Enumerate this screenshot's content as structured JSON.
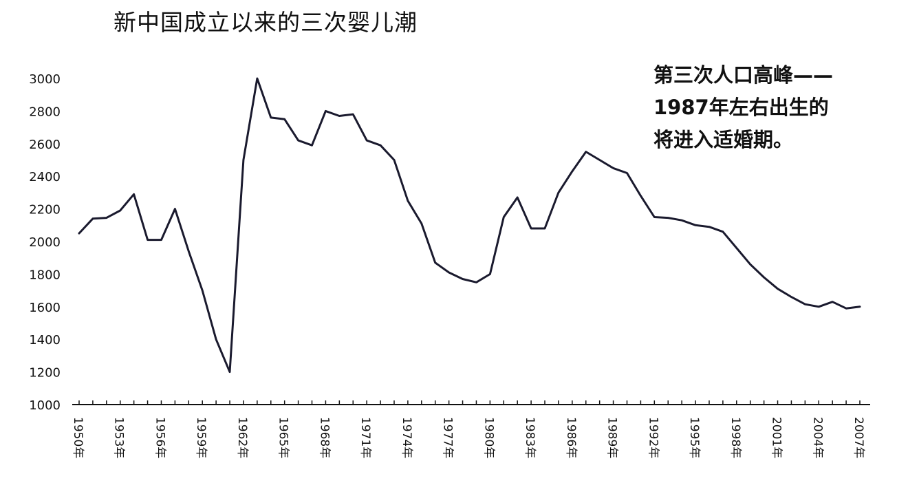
{
  "chart_data": {
    "type": "line",
    "title": "新中国成立以来的三次婴儿潮",
    "xlabel": "",
    "ylabel": "",
    "ylim": [
      1000,
      3000
    ],
    "yticks": [
      1000,
      1200,
      1400,
      1600,
      1800,
      2000,
      2200,
      2400,
      2600,
      2800,
      3000
    ],
    "xlim": [
      1950,
      2007
    ],
    "xtick_labels": [
      "1950年",
      "1953年",
      "1956年",
      "1959年",
      "1962年",
      "1965年",
      "1968年",
      "1971年",
      "1974年",
      "1977年",
      "1980年",
      "1983年",
      "1986年",
      "1989年",
      "1992年",
      "1995年",
      "1998年",
      "2001年",
      "2004年",
      "2007年"
    ],
    "grid": false,
    "annotation": [
      "第三次人口高峰——",
      "1987年左右出生的",
      "将进入适婚期。"
    ],
    "series": [
      {
        "color": "#1a1a2e",
        "x": [
          1950,
          1951,
          1952,
          1953,
          1954,
          1955,
          1956,
          1957,
          1958,
          1959,
          1960,
          1961,
          1962,
          1963,
          1964,
          1965,
          1966,
          1967,
          1968,
          1969,
          1970,
          1971,
          1972,
          1973,
          1974,
          1975,
          1976,
          1977,
          1978,
          1979,
          1980,
          1981,
          1982,
          1983,
          1984,
          1985,
          1986,
          1987,
          1988,
          1989,
          1990,
          1991,
          1992,
          1993,
          1994,
          1995,
          1996,
          1997,
          1998,
          1999,
          2000,
          2001,
          2002,
          2003,
          2004,
          2005,
          2006,
          2007
        ],
        "values": [
          2050,
          2140,
          2145,
          2190,
          2290,
          2010,
          2010,
          2200,
          1940,
          1700,
          1400,
          1200,
          2500,
          3000,
          2760,
          2750,
          2620,
          2590,
          2800,
          2770,
          2780,
          2620,
          2590,
          2500,
          2250,
          2110,
          1870,
          1810,
          1770,
          1750,
          1800,
          2150,
          2270,
          2080,
          2080,
          2300,
          2430,
          2550,
          2500,
          2450,
          2420,
          2280,
          2150,
          2145,
          2130,
          2100,
          2090,
          2060,
          1960,
          1860,
          1780,
          1710,
          1660,
          1615,
          1600,
          1630,
          1590,
          1600
        ]
      }
    ]
  }
}
